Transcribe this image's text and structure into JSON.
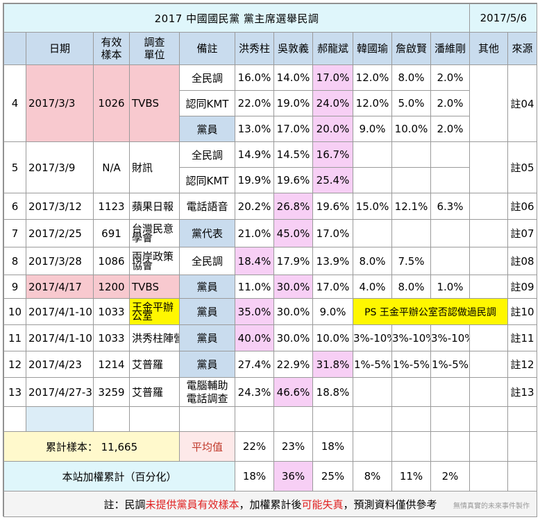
{
  "title": "2017 中國國民黨  黨主席選舉民調",
  "date": "2017/5/6",
  "headers": {
    "no": "",
    "date": "日期",
    "sample": "有效樣本",
    "org": "調查單位",
    "note": "備註",
    "c1": "洪秀柱",
    "c2": "吳敦義",
    "c3": "郝龍斌",
    "c4": "韓國瑜",
    "c5": "詹啟賢",
    "c6": "潘維剛",
    "other": "其他",
    "src": "來源"
  },
  "rows": [
    {
      "no": "4",
      "date": "2017/3/3",
      "sample": "1026",
      "org": "TVBS",
      "src": "註04",
      "sub": [
        {
          "note": "全民調",
          "v": [
            "16.0%",
            "14.0%",
            "17.0%",
            "12.0%",
            "8.0%",
            "2.0%"
          ]
        },
        {
          "note": "認同KMT",
          "v": [
            "22.0%",
            "19.0%",
            "24.0%",
            "12.0%",
            "5.0%",
            "2.0%"
          ]
        },
        {
          "note": "黨員",
          "v": [
            "13.0%",
            "17.0%",
            "20.0%",
            "9.0%",
            "10.0%",
            "2.0%"
          ]
        }
      ]
    },
    {
      "no": "5",
      "date": "2017/3/9",
      "sample": "N/A",
      "org": "財訊",
      "src": "註05",
      "sub": [
        {
          "note": "全民調",
          "v": [
            "14.9%",
            "14.5%",
            "16.7%",
            "",
            "",
            ""
          ]
        },
        {
          "note": "認同KMT",
          "v": [
            "19.9%",
            "19.6%",
            "25.4%",
            "",
            "",
            ""
          ]
        }
      ]
    },
    {
      "no": "6",
      "date": "2017/3/12",
      "sample": "1123",
      "org": "蘋果日報",
      "note": "電話語音",
      "v": [
        "20.2%",
        "26.8%",
        "19.6%",
        "15.0%",
        "12.1%",
        "6.3%"
      ],
      "src": "註06"
    },
    {
      "no": "7",
      "date": "2017/2/25",
      "sample": "691",
      "org": "台灣民意學會",
      "note": "黨代表",
      "v": [
        "21.0%",
        "45.0%",
        "17.0%",
        "",
        "",
        ""
      ],
      "src": "註07"
    },
    {
      "no": "8",
      "date": "2017/3/28",
      "sample": "1086",
      "org": "兩岸政策協會",
      "note": "全民調",
      "v": [
        "18.4%",
        "17.9%",
        "13.9%",
        "8.0%",
        "7.5%",
        ""
      ],
      "src": "註08"
    },
    {
      "no": "9",
      "date": "2017/4/17",
      "sample": "1200",
      "org": "TVBS",
      "note": "黨員",
      "v": [
        "11.0%",
        "30.0%",
        "17.0%",
        "4.0%",
        "8.0%",
        "1.0%"
      ],
      "src": "註09"
    },
    {
      "no": "10",
      "date": "2017/4/1-10",
      "sample": "1033",
      "org": "王金平辦公室",
      "note": "黨員",
      "v": [
        "35.0%",
        "30.0%",
        "9.0%"
      ],
      "ps": "PS 王金平辦公室否認做過民調",
      "src": "註10"
    },
    {
      "no": "11",
      "date": "2017/4/1-10",
      "sample": "1033",
      "org": "洪秀柱陣營",
      "note": "黨員",
      "v": [
        "40.0%",
        "30.0%",
        "10.0%",
        "3%-10%",
        "3%-10%",
        "3%-10%"
      ],
      "src": "註11"
    },
    {
      "no": "12",
      "date": "2017/4/23",
      "sample": "1214",
      "org": "艾普羅",
      "note": "黨員",
      "v": [
        "27.4%",
        "22.9%",
        "31.8%",
        "1%-5%",
        "1%-5%",
        "1%-5%"
      ],
      "src": "註12"
    },
    {
      "no": "13",
      "date": "2017/4/27-30",
      "sample": "3259",
      "org": "艾普羅",
      "note": "電腦輔助電話調查",
      "v": [
        "24.3%",
        "46.6%",
        "18.8%",
        "",
        "",
        ""
      ],
      "src": "註13"
    }
  ],
  "summary": {
    "total_label": "累計樣本：",
    "total_value": "11,665",
    "avg_label": "平均值",
    "avg": [
      "22%",
      "23%",
      "18%"
    ]
  },
  "weighted": {
    "label": "本站加權累計（百分化）",
    "values": [
      "18%",
      "36%",
      "25%",
      "8%",
      "11%",
      "2%"
    ]
  },
  "footer": {
    "p1": "註：民調",
    "p2": "未提供黨員有效樣本",
    "p3": "，加權累計後",
    "p4": "可能失真",
    "p5": "，預測資料僅供參考",
    "brand": "無情真實的未來事件製作"
  },
  "colors": {
    "title_bg": "#dff6fb",
    "header_bg": "#c9dcee",
    "pink": "#f8c9cf",
    "lilac": "#f7cff5",
    "highlight": "#fff700",
    "warn": "#e02020"
  }
}
